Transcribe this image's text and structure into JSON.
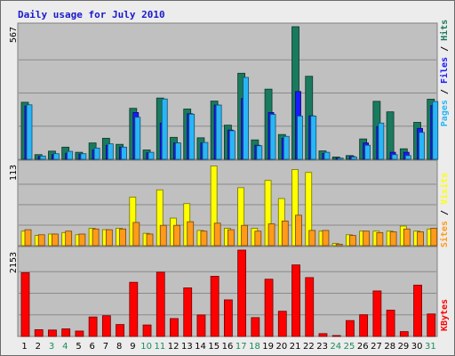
{
  "chart_data": [
    {
      "type": "bar",
      "title": "Daily usage for July 2010",
      "categories": [
        "1",
        "2",
        "3",
        "4",
        "5",
        "6",
        "7",
        "8",
        "9",
        "10",
        "11",
        "12",
        "13",
        "14",
        "15",
        "16",
        "17",
        "18",
        "19",
        "20",
        "21",
        "22",
        "23",
        "24",
        "25",
        "26",
        "27",
        "28",
        "29",
        "30",
        "31"
      ],
      "weekend_days": [
        "3",
        "4",
        "10",
        "11",
        "17",
        "18",
        "24",
        "25",
        "31"
      ],
      "ymax_label": "567",
      "ylim": [
        0,
        567
      ],
      "series": [
        {
          "name": "Hits",
          "color": "#1a7a5e",
          "values": [
            244,
            20,
            35,
            52,
            30,
            70,
            90,
            64,
            218,
            40,
            262,
            94,
            215,
            92,
            249,
            146,
            368,
            83,
            300,
            106,
            567,
            355,
            36,
            10,
            16,
            87,
            248,
            203,
            45,
            158,
            257
          ]
        },
        {
          "name": "Files",
          "color": "#1a1aff",
          "values": [
            228,
            12,
            20,
            26,
            22,
            40,
            60,
            52,
            200,
            28,
            155,
            70,
            195,
            70,
            232,
            125,
            260,
            60,
            200,
            90,
            290,
            186,
            25,
            5,
            12,
            70,
            140,
            30,
            30,
            132,
            230
          ]
        },
        {
          "name": "Pages",
          "color": "#29b6f6",
          "values": [
            233,
            14,
            24,
            34,
            24,
            48,
            66,
            52,
            180,
            30,
            258,
            70,
            193,
            72,
            232,
            122,
            350,
            58,
            192,
            98,
            185,
            185,
            30,
            5,
            10,
            60,
            155,
            20,
            16,
            115,
            247
          ]
        }
      ],
      "ylabel": "Pages / Files / Hits"
    },
    {
      "type": "bar",
      "ymax_label": "113",
      "ylim": [
        0,
        113
      ],
      "series": [
        {
          "name": "Visits",
          "color": "#ffff00",
          "values": [
            20,
            14,
            16,
            18,
            15,
            24,
            22,
            24,
            67,
            17,
            77,
            38,
            58,
            21,
            110,
            24,
            80,
            24,
            90,
            65,
            105,
            101,
            20,
            3,
            15,
            20,
            20,
            20,
            27,
            20,
            23
          ]
        },
        {
          "name": "Sites",
          "color": "#ff9a1a",
          "values": [
            22,
            15,
            16,
            20,
            16,
            23,
            22,
            23,
            32,
            16,
            28,
            28,
            33,
            20,
            31,
            22,
            28,
            20,
            30,
            34,
            42,
            21,
            21,
            2,
            14,
            20,
            18,
            19,
            23,
            19,
            24
          ]
        }
      ],
      "ylabel": "Sites / Visits"
    },
    {
      "type": "bar",
      "ymax_label": "2153",
      "ylim": [
        0,
        2153
      ],
      "series": [
        {
          "name": "KBytes",
          "color": "#ff0000",
          "values": [
            1590,
            168,
            160,
            188,
            134,
            485,
            517,
            297,
            1350,
            286,
            1600,
            446,
            1211,
            535,
            1500,
            912,
            2153,
            469,
            1427,
            628,
            1783,
            1467,
            70,
            20,
            396,
            540,
            1134,
            656,
            120,
            1280,
            560
          ]
        }
      ],
      "ylabel": "KBytes"
    }
  ]
}
